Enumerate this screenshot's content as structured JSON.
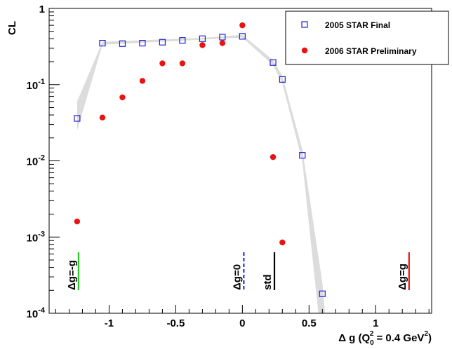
{
  "chart_data": {
    "type": "scatter",
    "ylabel": "CL",
    "xlabel_parts": {
      "delta": "Δ",
      "g": " g (Q",
      "sub": "0",
      "sup": "2",
      "rest": " = 0.4 GeV",
      "sup2": "2",
      "close": ")"
    },
    "xlim": [
      -1.45,
      1.42
    ],
    "ylim": [
      0.0001,
      1
    ],
    "yscale": "log",
    "x_ticks": [
      {
        "value": -1,
        "label": "-1"
      },
      {
        "value": -0.5,
        "label": "-0.5"
      },
      {
        "value": 0,
        "label": "0"
      },
      {
        "value": 0.5,
        "label": "0.5"
      },
      {
        "value": 1,
        "label": "1"
      }
    ],
    "y_ticks": [
      {
        "value": 1,
        "base": "1",
        "exp": ""
      },
      {
        "value": 0.1,
        "base": "10",
        "exp": "-1"
      },
      {
        "value": 0.01,
        "base": "10",
        "exp": "-2"
      },
      {
        "value": 0.001,
        "base": "10",
        "exp": "-3"
      },
      {
        "value": 0.0001,
        "base": "10",
        "exp": "-4"
      }
    ],
    "legend": {
      "placement": "top-right",
      "entries": [
        {
          "name": "2005 STAR Final",
          "marker": "open-square",
          "color": "#1f1fd6"
        },
        {
          "name": "2006 STAR Preliminary",
          "marker": "filled-circle",
          "color": "#e81414"
        }
      ]
    },
    "series": [
      {
        "name": "2005 STAR Final",
        "marker": "open-square",
        "color": "#1f1fd6",
        "x": [
          -1.24,
          -1.05,
          -0.9,
          -0.75,
          -0.6,
          -0.45,
          -0.3,
          -0.15,
          0.0,
          0.23,
          0.3,
          0.45,
          0.6
        ],
        "y": [
          0.036,
          0.35,
          0.345,
          0.35,
          0.36,
          0.38,
          0.4,
          0.42,
          0.43,
          0.195,
          0.117,
          0.0118,
          0.00018
        ]
      },
      {
        "name": "2006 STAR Preliminary",
        "marker": "filled-circle",
        "color": "#e81414",
        "x": [
          -1.24,
          -1.05,
          -0.9,
          -0.75,
          -0.6,
          -0.45,
          -0.3,
          -0.15,
          0.0,
          0.23,
          0.3
        ],
        "y": [
          0.0016,
          0.037,
          0.068,
          0.112,
          0.19,
          0.19,
          0.33,
          0.35,
          0.6,
          0.0112,
          0.00085
        ]
      }
    ],
    "band": {
      "color": "#dcdcdc",
      "upper": [
        [
          -1.24,
          0.06
        ],
        [
          -1.05,
          0.365
        ],
        [
          -0.3,
          0.41
        ],
        [
          0.0,
          0.45
        ],
        [
          0.23,
          0.21
        ],
        [
          0.3,
          0.13
        ],
        [
          0.45,
          0.014
        ],
        [
          0.6,
          0.00025
        ],
        [
          0.62,
          0.0001
        ]
      ],
      "lower": [
        [
          0.57,
          0.0001
        ],
        [
          0.45,
          0.0098
        ],
        [
          0.3,
          0.104
        ],
        [
          0.23,
          0.18
        ],
        [
          0.0,
          0.415
        ],
        [
          -0.3,
          0.39
        ],
        [
          -1.05,
          0.335
        ],
        [
          -1.24,
          0.025
        ]
      ]
    },
    "annotations": [
      {
        "name": "annot-g-neg",
        "parts": [
          "Δ",
          "g=-g"
        ],
        "x": -1.24,
        "color": "#22cc22",
        "style": "solid"
      },
      {
        "name": "annot-g-zero",
        "parts": [
          "Δ",
          "g=0"
        ],
        "x": 0.0,
        "color": "#2233ee",
        "style": "dashed"
      },
      {
        "name": "annot-std",
        "parts": [
          "",
          "std"
        ],
        "x": 0.23,
        "color": "#000000",
        "style": "solid"
      },
      {
        "name": "annot-g-pos",
        "parts": [
          "Δ",
          "g=g"
        ],
        "x": 1.24,
        "color": "#e81414",
        "style": "solid"
      }
    ]
  }
}
